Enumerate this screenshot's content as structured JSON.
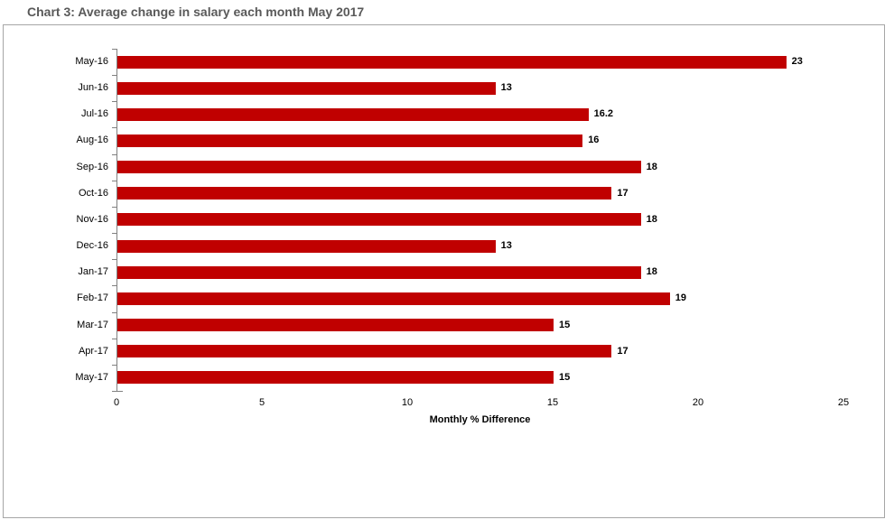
{
  "page": {
    "heading": "Chart 3: Average change in salary each month May 2017"
  },
  "chart_data": {
    "type": "bar",
    "orientation": "horizontal",
    "title": "Chart 3: Average change in salary each month May 2017",
    "categories": [
      "May-16",
      "Jun-16",
      "Jul-16",
      "Aug-16",
      "Sep-16",
      "Oct-16",
      "Nov-16",
      "Dec-16",
      "Jan-17",
      "Feb-17",
      "Mar-17",
      "Apr-17",
      "May-17"
    ],
    "values": [
      23,
      13,
      16.2,
      16,
      18,
      17,
      18,
      13,
      18,
      19,
      15,
      17,
      15
    ],
    "value_labels": [
      "23",
      "13",
      "16.2",
      "16",
      "18",
      "17",
      "18",
      "13",
      "18",
      "19",
      "15",
      "17",
      "15"
    ],
    "xlabel": "Monthly % Difference",
    "ylabel": "",
    "xlim": [
      0,
      25
    ],
    "xticks": [
      0,
      5,
      10,
      15,
      20,
      25
    ],
    "grid": false,
    "legend": "none",
    "bar_color": "#c00000",
    "axis_color": "#808080",
    "title_color": "#595959"
  }
}
